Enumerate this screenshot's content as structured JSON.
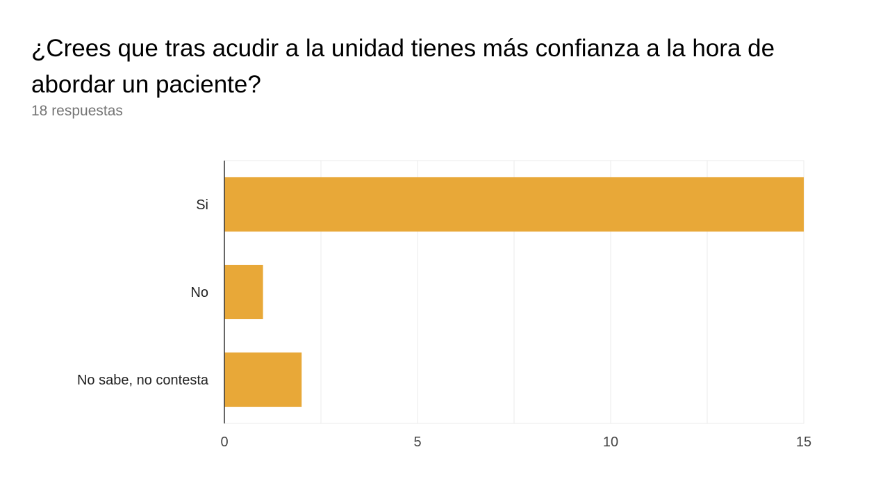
{
  "title": "¿Crees que tras acudir a la unidad tienes más confianza a la hora de abordar un paciente?",
  "subtitle": "18 respuestas",
  "chart_data": {
    "type": "bar",
    "orientation": "horizontal",
    "categories": [
      "Si",
      "No",
      "No sabe, no contesta"
    ],
    "values": [
      15,
      1,
      2
    ],
    "xlim": [
      0,
      15
    ],
    "xticks": [
      0,
      5,
      10,
      15
    ],
    "grid": true,
    "bar_color": "#E8A838",
    "axis_color": "#333333",
    "grid_color": "#EBEBEB"
  }
}
